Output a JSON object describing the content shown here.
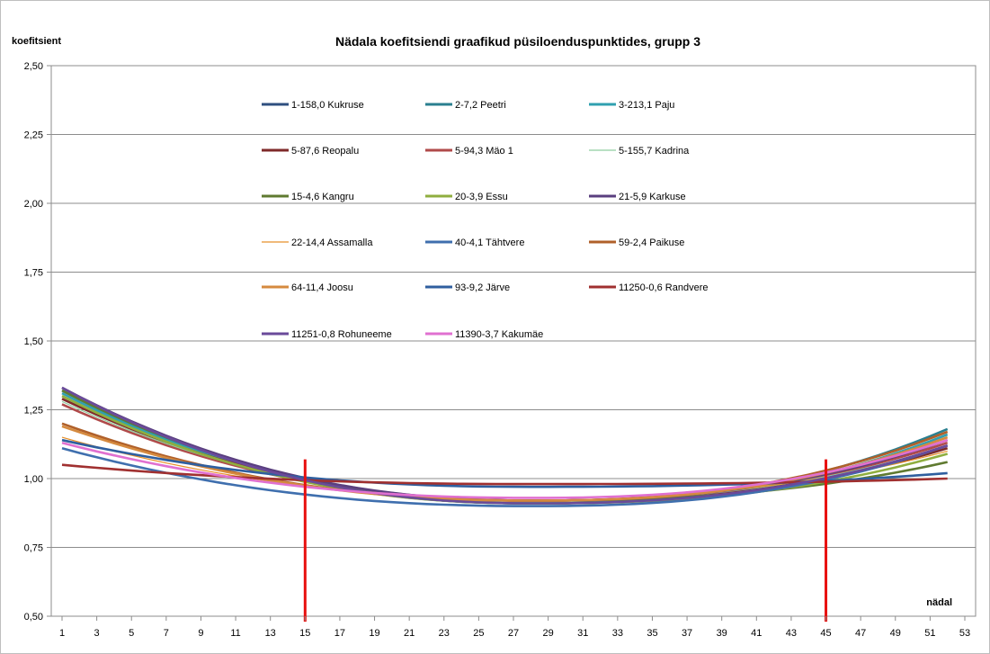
{
  "chart_data": {
    "type": "line",
    "title": "Nädala koefitsiendi graafikud püsiloenduspunktides, grupp 3",
    "ylabel": "koefitsient",
    "xlabel": "nädal",
    "x_ticks": [
      "1",
      "3",
      "5",
      "7",
      "9",
      "11",
      "13",
      "15",
      "17",
      "19",
      "21",
      "23",
      "25",
      "27",
      "29",
      "31",
      "33",
      "35",
      "37",
      "39",
      "41",
      "43",
      "45",
      "47",
      "49",
      "51",
      "53"
    ],
    "y_ticks": [
      "0,50",
      "0,75",
      "1,00",
      "1,25",
      "1,50",
      "1,75",
      "2,00",
      "2,25",
      "2,50"
    ],
    "xlim": [
      1,
      53
    ],
    "ylim": [
      0.5,
      2.5
    ],
    "grid": "horizontal",
    "legend_position": "top-center",
    "reference_lines": [
      {
        "x": 15,
        "color": "#e8100f"
      },
      {
        "x": 45,
        "color": "#e8100f"
      }
    ],
    "series": [
      {
        "name": "1-158,0 Kukruse",
        "color": "#2f4f7f",
        "start": 1.33,
        "min": 0.91,
        "end": 1.12
      },
      {
        "name": "2-7,2 Peetri",
        "color": "#2a7f8f",
        "start": 1.32,
        "min": 0.91,
        "end": 1.18
      },
      {
        "name": "3-213,1 Paju",
        "color": "#30a0b0",
        "start": 1.31,
        "min": 0.91,
        "end": 1.16
      },
      {
        "name": "5-87,6 Reopalu",
        "color": "#7f2a2a",
        "start": 1.29,
        "min": 0.92,
        "end": 1.11
      },
      {
        "name": "5-94,3 Mäo 1",
        "color": "#b04a4a",
        "start": 1.27,
        "min": 0.92,
        "end": 1.13
      },
      {
        "name": "5-155,7 Kadrina",
        "color": "#8fce9f",
        "start": 1.28,
        "min": 0.92,
        "end": 1.12
      },
      {
        "name": "15-4,6 Kangru",
        "color": "#5f7a30",
        "start": 1.32,
        "min": 0.92,
        "end": 1.06
      },
      {
        "name": "20-3,9 Essu",
        "color": "#8fae3f",
        "start": 1.3,
        "min": 0.91,
        "end": 1.09
      },
      {
        "name": "21-5,9 Karkuse",
        "color": "#5a3f7f",
        "start": 1.33,
        "min": 0.92,
        "end": 1.14
      },
      {
        "name": "22-14,4 Assamalla",
        "color": "#e8902a",
        "start": 1.15,
        "min": 0.93,
        "end": 1.1
      },
      {
        "name": "40-4,1 Tähtvere",
        "color": "#3f6fae",
        "start": 1.11,
        "min": 0.9,
        "end": 1.12
      },
      {
        "name": "59-2,4 Paikuse",
        "color": "#b0602a",
        "start": 1.2,
        "min": 0.92,
        "end": 1.17
      },
      {
        "name": "64-11,4 Joosu",
        "color": "#d58a3f",
        "start": 1.19,
        "min": 0.92,
        "end": 1.15
      },
      {
        "name": "93-9,2 Järve",
        "color": "#2f5f9f",
        "start": 1.14,
        "min": 0.97,
        "end": 1.02
      },
      {
        "name": "11250-0,6 Randvere",
        "color": "#a03030",
        "start": 1.05,
        "min": 0.98,
        "end": 1.0
      },
      {
        "name": "11251-0,8 Rohuneeme",
        "color": "#6a4a9a",
        "start": 1.33,
        "min": 0.91,
        "end": 1.12
      },
      {
        "name": "11390-3,7 Kakumäe",
        "color": "#e070d0",
        "start": 1.13,
        "min": 0.93,
        "end": 1.14
      }
    ]
  }
}
